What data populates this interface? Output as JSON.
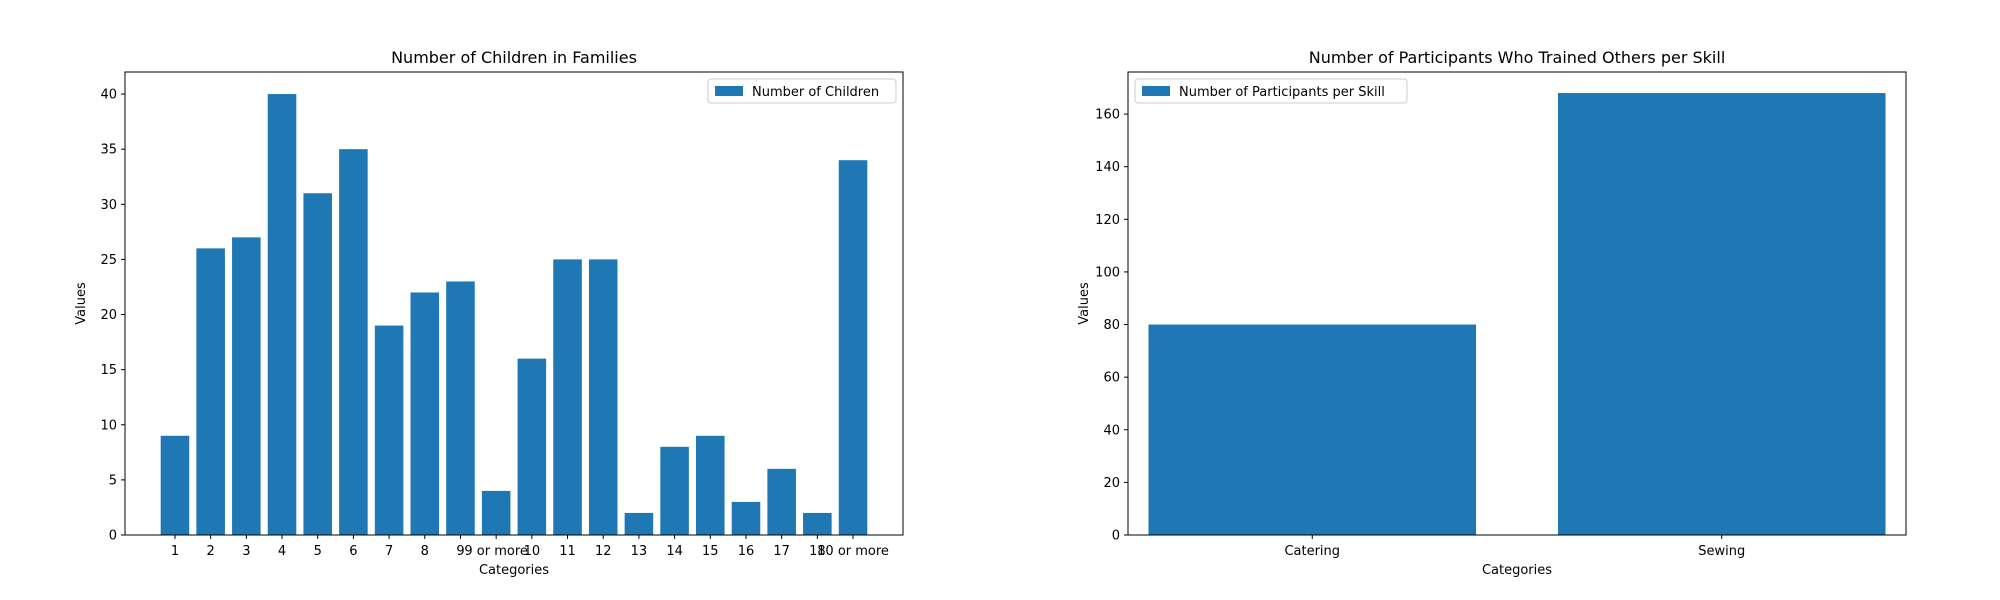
{
  "chart_data": [
    {
      "type": "bar",
      "title": "Number of Children in Families",
      "xlabel": "Categories",
      "ylabel": "Values",
      "ylim": [
        0,
        42
      ],
      "yticks": [
        0,
        5,
        10,
        15,
        20,
        25,
        30,
        35,
        40
      ],
      "categories": [
        "1",
        "2",
        "3",
        "4",
        "5",
        "6",
        "7",
        "8",
        "9",
        "9 or more",
        "10",
        "11",
        "12",
        "13",
        "14",
        "15",
        "16",
        "17",
        "18",
        "10 or more"
      ],
      "series": [
        {
          "name": "Number of Children",
          "values": [
            9,
            26,
            27,
            40,
            31,
            35,
            19,
            22,
            23,
            4,
            16,
            25,
            25,
            2,
            8,
            9,
            3,
            6,
            2,
            34
          ]
        }
      ],
      "color": "#1f77b4",
      "legend": "top-right",
      "grid": false
    },
    {
      "type": "bar",
      "title": "Number of Participants Who Trained Others per Skill",
      "xlabel": "Categories",
      "ylabel": "Values",
      "ylim": [
        0,
        176
      ],
      "yticks": [
        0,
        20,
        40,
        60,
        80,
        100,
        120,
        140,
        160
      ],
      "categories": [
        "Catering",
        "Sewing"
      ],
      "series": [
        {
          "name": "Number of Participants per Skill",
          "values": [
            80,
            168
          ]
        }
      ],
      "color": "#1f77b4",
      "legend": "top-left",
      "grid": false
    }
  ]
}
